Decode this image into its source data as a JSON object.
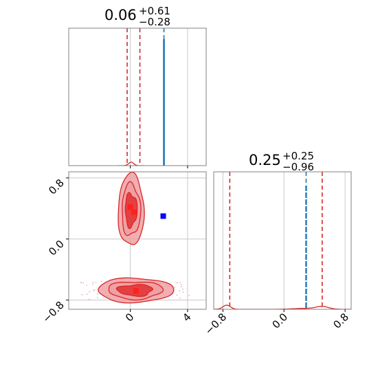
{
  "colors": {
    "red": "#d62728",
    "red_fill": "#f0a0a3",
    "red_dark": "#e02020",
    "blue": "#1f77b4",
    "truth": "#0000ff",
    "grid": "#c8c8c8",
    "frame": "#808080"
  },
  "chart_data": [
    {
      "type": "histogram",
      "panel": "top-left",
      "parameter_index": 0,
      "title_parts": {
        "median": "0.06",
        "upper": "+0.61",
        "lower": "−0.28"
      },
      "x_range": [
        -4.3,
        5.3
      ],
      "quantile_lines": [
        -0.22,
        0.06,
        0.67
      ],
      "comparison_line": 2.35,
      "histogram_peak_x": 0.06
    },
    {
      "type": "histogram",
      "panel": "bottom-right",
      "parameter_index": 1,
      "title_parts": {
        "median": "0.25",
        "upper": "+0.25",
        "lower": "−0.96"
      },
      "x_range": [
        -0.92,
        0.88
      ],
      "x_ticks": [
        -0.8,
        0.0,
        0.8
      ],
      "x_tick_labels": [
        "−0.8",
        "0.0",
        "0.8"
      ],
      "quantile_lines": [
        -0.71,
        0.25,
        0.5
      ],
      "comparison_line": 0.29,
      "histogram_peaks_x": [
        -0.75,
        0.5
      ]
    },
    {
      "type": "density-contour",
      "panel": "bottom-left",
      "x_range": [
        -4.3,
        5.3
      ],
      "y_range": [
        -0.92,
        0.88
      ],
      "x_ticks": [
        0,
        4
      ],
      "x_tick_labels": [
        "0",
        "4"
      ],
      "y_ticks": [
        -0.8,
        0.0,
        0.8
      ],
      "y_tick_labels": [
        "−0.8",
        "0.0",
        "0.8"
      ],
      "modes": [
        {
          "center": [
            0.05,
            0.38
          ],
          "spread": [
            0.95,
            0.48
          ]
        },
        {
          "center": [
            0.35,
            -0.67
          ],
          "spread": [
            4.0,
            0.16
          ]
        }
      ],
      "red_markers": [
        [
          0.0,
          0.42
        ],
        [
          0.25,
          0.35
        ],
        [
          0.4,
          -0.68
        ]
      ],
      "truth_marker": [
        2.3,
        0.3
      ]
    }
  ]
}
